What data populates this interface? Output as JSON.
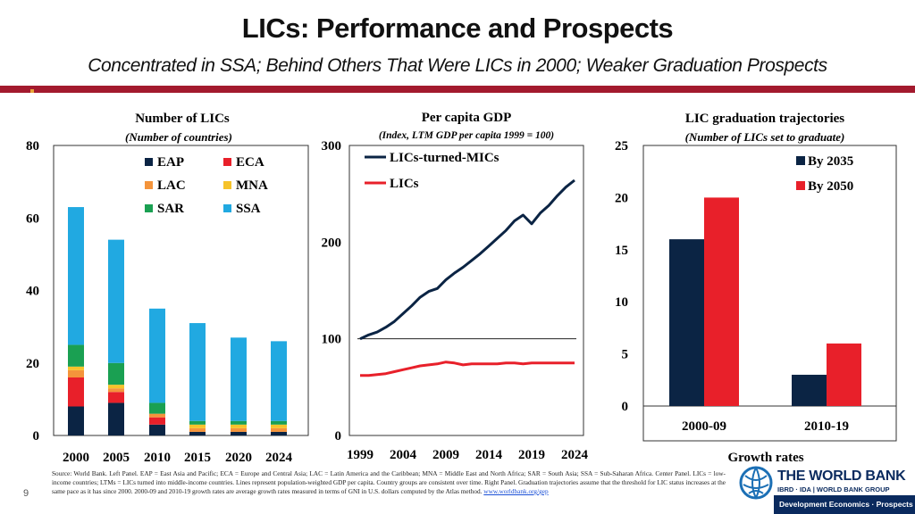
{
  "header": {
    "title": "LICs: Performance and Prospects",
    "subtitle": "Concentrated in SSA; Behind Others That Were LICs in 2000; Weaker Graduation Prospects"
  },
  "colors": {
    "EAP": "#0b2444",
    "ECA": "#e8202a",
    "LAC": "#f4943b",
    "MNA": "#f6c32a",
    "SAR": "#1aa052",
    "SSA": "#21a9e1",
    "mics_line": "#0b2444",
    "lics_line": "#e8202a",
    "by2035": "#0b2444",
    "by2050": "#e8202a"
  },
  "chart_data": [
    {
      "type": "bar",
      "stacked": true,
      "title": "Number of LICs",
      "subtitle": "(Number of countries)",
      "categories": [
        "2000",
        "2005",
        "2010",
        "2015",
        "2020",
        "2024"
      ],
      "ylim": [
        0,
        80
      ],
      "yticks": [
        "0",
        "20",
        "40",
        "60",
        "80"
      ],
      "series": [
        {
          "name": "EAP",
          "values": [
            8,
            9,
            3,
            1,
            1,
            1
          ]
        },
        {
          "name": "ECA",
          "values": [
            8,
            3,
            2,
            0,
            0,
            0
          ]
        },
        {
          "name": "LAC",
          "values": [
            2,
            1,
            1,
            1,
            1,
            1
          ]
        },
        {
          "name": "MNA",
          "values": [
            1,
            1,
            0,
            1,
            1,
            1
          ]
        },
        {
          "name": "SAR",
          "values": [
            6,
            6,
            3,
            1,
            1,
            1
          ]
        },
        {
          "name": "SSA",
          "values": [
            38,
            34,
            26,
            27,
            23,
            22
          ]
        }
      ],
      "legend": [
        "EAP",
        "ECA",
        "LAC",
        "MNA",
        "SAR",
        "SSA"
      ]
    },
    {
      "type": "line",
      "title": "Per capita GDP",
      "subtitle": "(Index, LTM GDP per capita 1999 = 100)",
      "ylim": [
        0,
        300
      ],
      "yticks": [
        "0",
        "100",
        "200",
        "300"
      ],
      "xticks": [
        "1999",
        "2004",
        "2009",
        "2014",
        "2019",
        "2024"
      ],
      "x": [
        1999,
        2000,
        2001,
        2002,
        2003,
        2004,
        2005,
        2006,
        2007,
        2008,
        2009,
        2010,
        2011,
        2012,
        2013,
        2014,
        2015,
        2016,
        2017,
        2018,
        2019,
        2020,
        2021,
        2022,
        2023,
        2024
      ],
      "series": [
        {
          "name": "LICs-turned-MICs",
          "values": [
            100,
            104,
            107,
            112,
            118,
            126,
            134,
            143,
            149,
            152,
            161,
            168,
            174,
            181,
            188,
            196,
            204,
            212,
            222,
            228,
            219,
            230,
            238,
            248,
            257,
            264
          ]
        },
        {
          "name": "LICs",
          "values": [
            62,
            62,
            63,
            64,
            66,
            68,
            70,
            72,
            73,
            74,
            76,
            75,
            73,
            74,
            74,
            74,
            74,
            75,
            75,
            74,
            75,
            75,
            75,
            75,
            75,
            75
          ]
        }
      ],
      "reference_line": 100
    },
    {
      "type": "bar",
      "title": "LIC graduation trajectories",
      "subtitle": "(Number of LICs set to graduate)",
      "categories": [
        "2000-09",
        "2010-19"
      ],
      "xlabel": "Growth rates",
      "ylim": [
        0,
        25
      ],
      "yticks": [
        "0",
        "5",
        "10",
        "15",
        "20",
        "25"
      ],
      "series": [
        {
          "name": "By 2035",
          "values": [
            16,
            3
          ]
        },
        {
          "name": "By 2050",
          "values": [
            20,
            6
          ]
        }
      ]
    }
  ],
  "footer": {
    "page_number": "9",
    "source_text": "Source: World Bank. Left Panel. EAP = East Asia and Pacific; ECA = Europe and Central Asia; LAC = Latin America and the Caribbean; MNA = Middle East and North Africa; SAR = South Asia; SSA = Sub-Saharan Africa. Center Panel. LICs = low-income countries; LTMs = LICs turned into middle-income countries. Lines represent population-weighted GDP per capita. Country groups are consistent over time. Right Panel. Graduation trajectories assume that the threshold for LIC status increases at the same pace as it has since 2000. 2000-09 and 2010-19 growth rates are average growth rates measured in terms of GNI in U.S. dollars computed by the Atlas method.",
    "source_link": "www.worldbank.org/gep",
    "logo_name": "THE WORLD BANK",
    "logo_sub": "IBRD · IDA | WORLD BANK GROUP",
    "logo_dept": "Development Economics · Prospects"
  }
}
